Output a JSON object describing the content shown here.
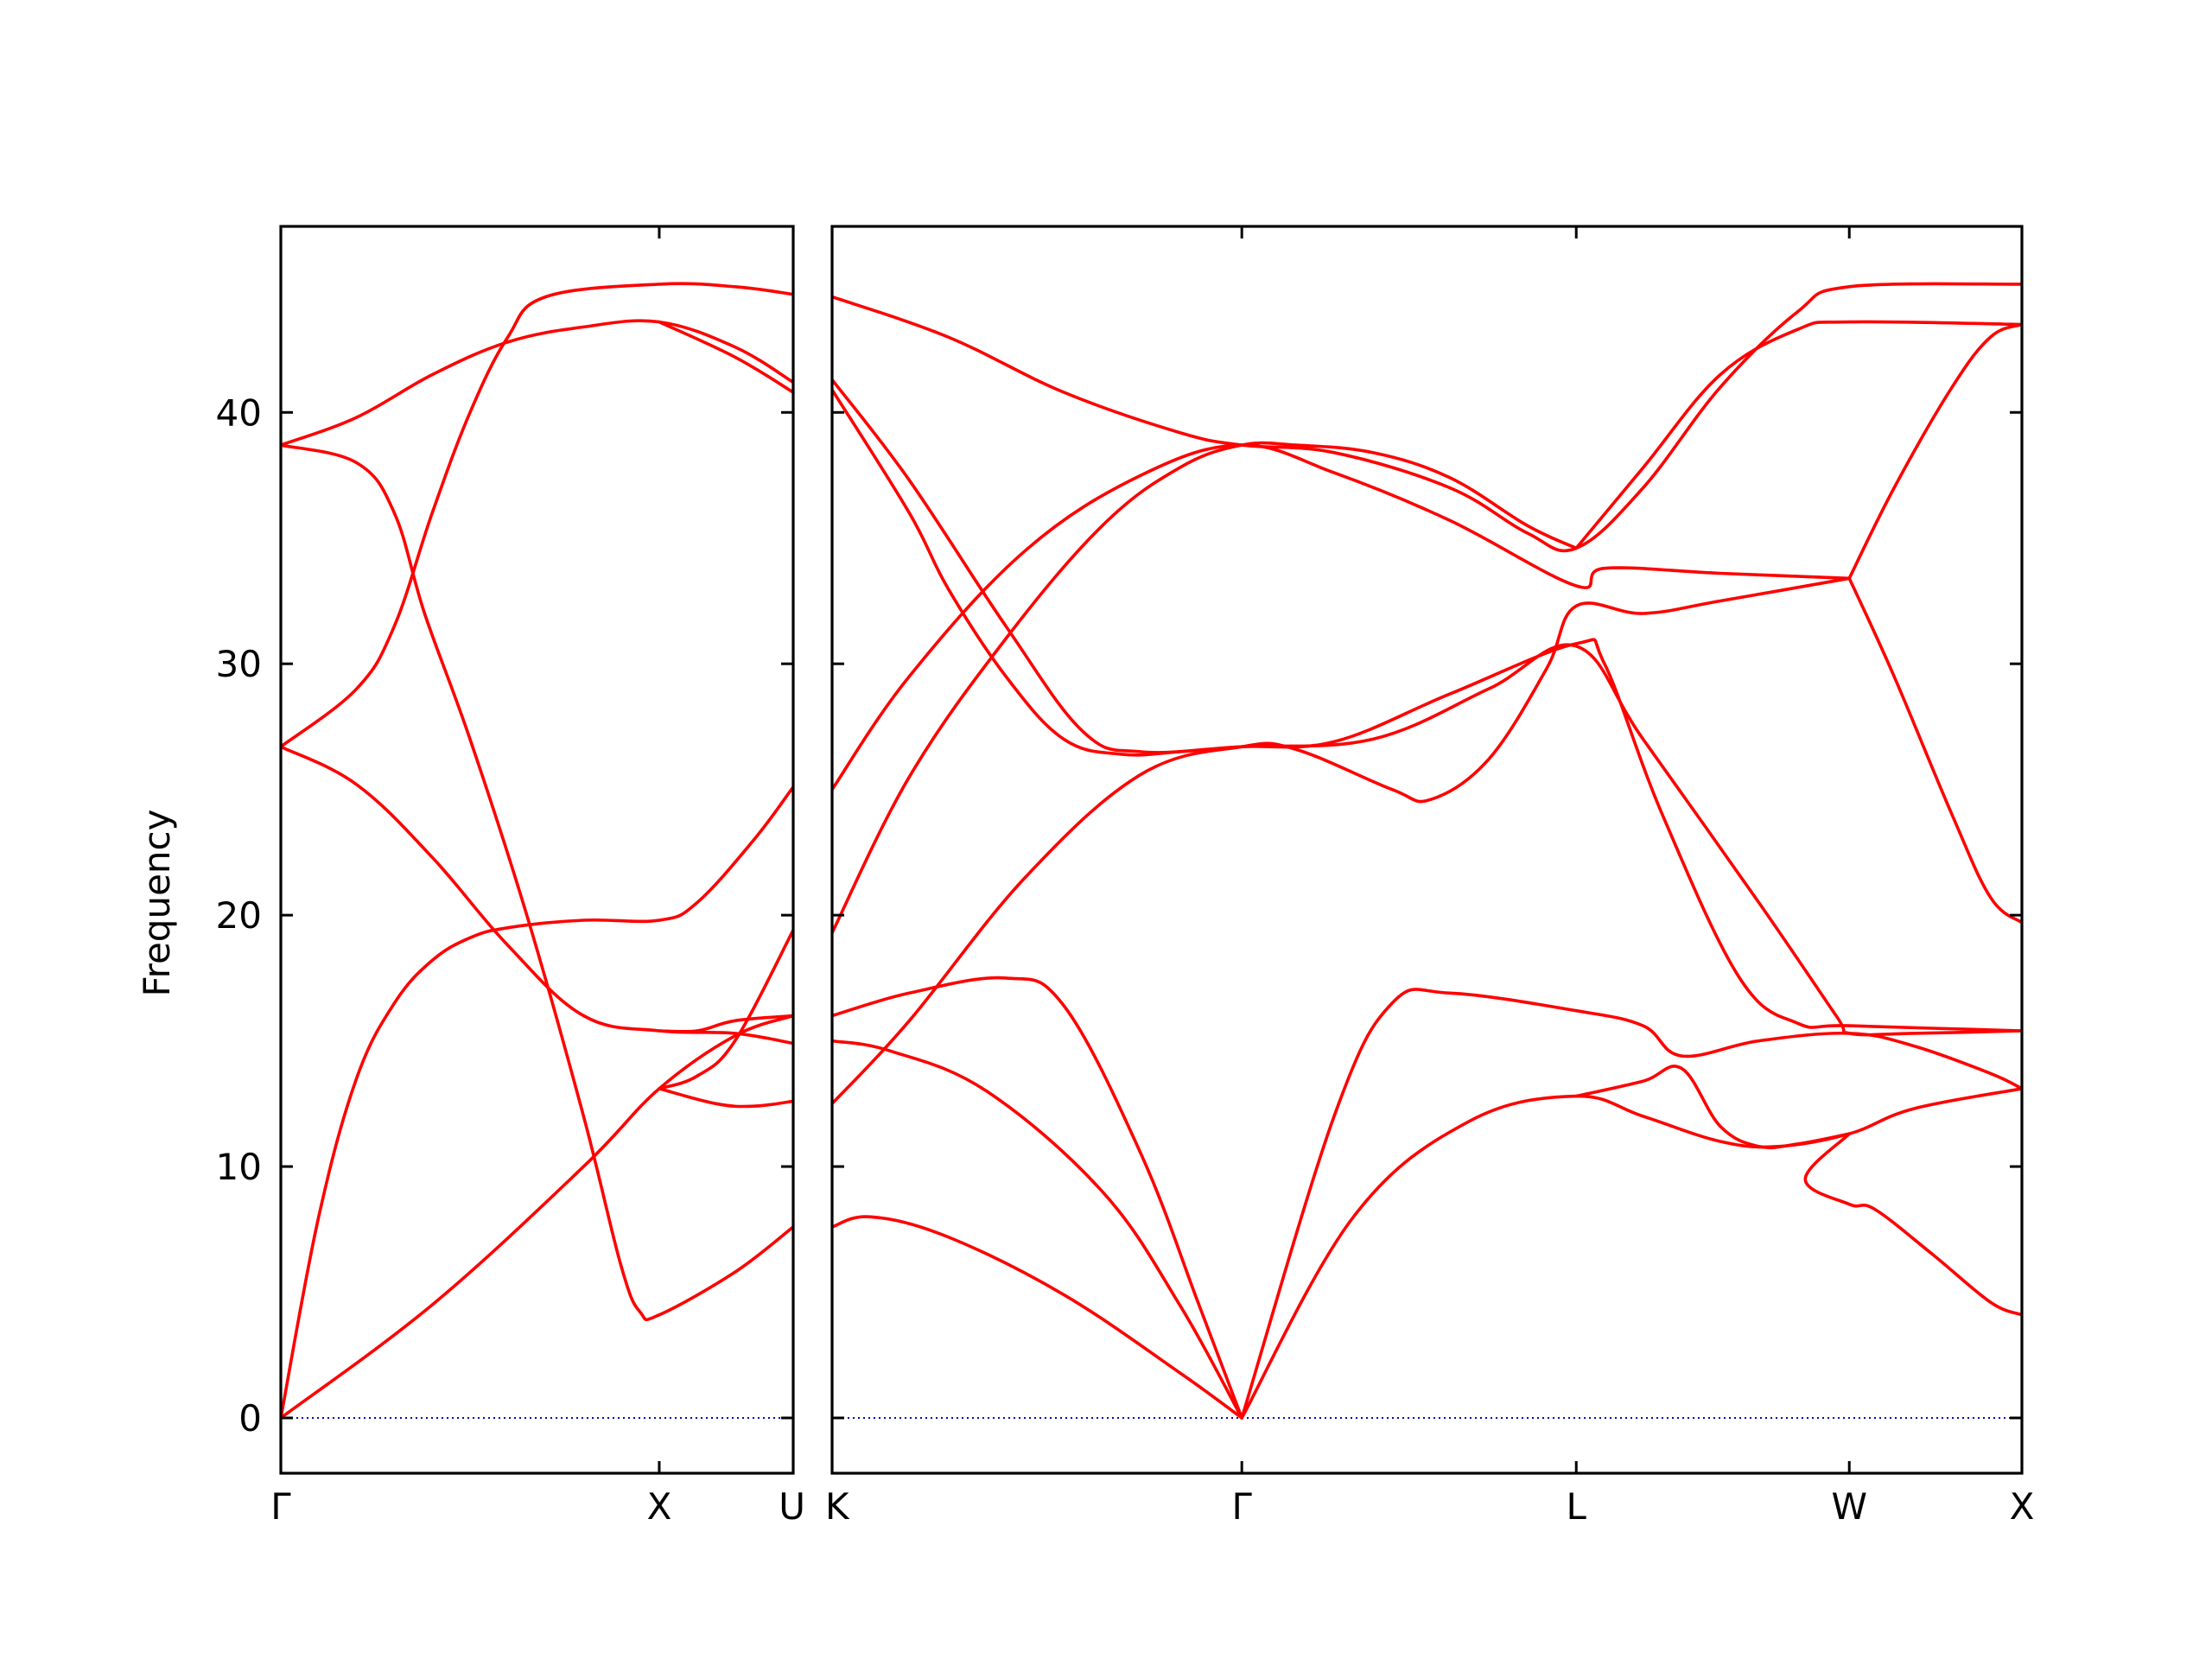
{
  "chart_data": {
    "type": "line",
    "ylabel": "Frequency",
    "ylim": [
      -2.2,
      47.4
    ],
    "yticks": [
      0,
      10,
      20,
      30,
      40
    ],
    "grid": false,
    "colors": {
      "bands": "#ff0000",
      "zero_line": "#0000cc"
    },
    "panels": [
      {
        "path": "Γ-X-U",
        "xlim": [
          0,
          1.354
        ],
        "x_ticks": [
          {
            "x": 0.0,
            "label": "Γ"
          },
          {
            "x": 1.0,
            "label": "X"
          },
          {
            "x": 1.354,
            "label": "U"
          }
        ],
        "series": [
          {
            "points": [
              [
                0,
                0
              ],
              [
                0.4,
                4.5
              ],
              [
                0.8,
                10.0
              ],
              [
                1.0,
                13.1
              ],
              [
                1.2,
                15.2
              ],
              [
                1.354,
                16.0
              ]
            ]
          },
          {
            "points": [
              [
                0,
                0
              ],
              [
                0.1,
                8.0
              ],
              [
                0.2,
                13.5
              ],
              [
                0.3,
                16.5
              ],
              [
                0.4,
                18.2
              ],
              [
                0.5,
                19.1
              ],
              [
                0.6,
                19.5
              ],
              [
                0.8,
                19.8
              ],
              [
                1.0,
                19.8
              ],
              [
                1.1,
                20.5
              ],
              [
                1.25,
                23.0
              ],
              [
                1.354,
                25.1
              ]
            ]
          },
          {
            "points": [
              [
                0,
                26.7
              ],
              [
                0.2,
                25.2
              ],
              [
                0.4,
                22.3
              ],
              [
                0.6,
                18.8
              ],
              [
                0.8,
                16.0
              ],
              [
                1.0,
                15.4
              ],
              [
                1.2,
                15.3
              ],
              [
                1.354,
                14.9
              ]
            ]
          },
          {
            "points": [
              [
                0,
                26.7
              ],
              [
                0.2,
                29.0
              ],
              [
                0.3,
                31.5
              ],
              [
                0.4,
                36.0
              ],
              [
                0.5,
                40.0
              ],
              [
                0.6,
                43.0
              ],
              [
                0.7,
                44.6
              ],
              [
                1.0,
                45.1
              ],
              [
                1.2,
                45.0
              ],
              [
                1.354,
                44.7
              ]
            ]
          },
          {
            "points": [
              [
                0,
                38.7
              ],
              [
                0.2,
                38.0
              ],
              [
                0.3,
                36.0
              ],
              [
                0.38,
                32.0
              ],
              [
                0.5,
                27.0
              ],
              [
                0.65,
                20.0
              ],
              [
                0.8,
                12.0
              ],
              [
                0.9,
                6.0
              ],
              [
                0.95,
                4.2
              ],
              [
                1.0,
                4.1
              ],
              [
                1.2,
                5.8
              ],
              [
                1.354,
                7.6
              ]
            ]
          },
          {
            "points": [
              [
                0,
                38.7
              ],
              [
                0.2,
                39.8
              ],
              [
                0.4,
                41.5
              ],
              [
                0.6,
                42.8
              ],
              [
                0.8,
                43.4
              ],
              [
                1.0,
                43.6
              ],
              [
                1.2,
                42.6
              ],
              [
                1.354,
                41.2
              ]
            ]
          },
          {
            "points": [
              [
                1.0,
                43.6
              ],
              [
                1.2,
                42.2
              ],
              [
                1.354,
                40.8
              ]
            ]
          },
          {
            "points": [
              [
                1.0,
                13.1
              ],
              [
                1.15,
                12.5
              ],
              [
                1.25,
                12.4
              ],
              [
                1.354,
                12.6
              ]
            ]
          },
          {
            "points": [
              [
                1.0,
                15.4
              ],
              [
                1.1,
                15.4
              ],
              [
                1.2,
                15.8
              ],
              [
                1.354,
                16.0
              ]
            ]
          },
          {
            "points": [
              [
                1.0,
                13.1
              ],
              [
                1.1,
                13.6
              ],
              [
                1.2,
                15.0
              ],
              [
                1.354,
                19.4
              ]
            ]
          }
        ]
      },
      {
        "path": "K-Γ-L-W-X",
        "xlim": [
          0,
          3.081
        ],
        "x_ticks": [
          {
            "x": 0.0,
            "label": "K"
          },
          {
            "x": 1.061,
            "label": "Γ"
          },
          {
            "x": 1.927,
            "label": "L"
          },
          {
            "x": 2.634,
            "label": "W"
          },
          {
            "x": 3.081,
            "label": "X"
          }
        ],
        "series": [
          {
            "points": [
              [
                0,
                7.6
              ],
              [
                0.1,
                8.0
              ],
              [
                0.3,
                7.2
              ],
              [
                0.6,
                4.9
              ],
              [
                0.9,
                1.8
              ],
              [
                1.061,
                0
              ]
            ]
          },
          {
            "points": [
              [
                0,
                15.0
              ],
              [
                0.15,
                14.6
              ],
              [
                0.4,
                13.0
              ],
              [
                0.7,
                9.0
              ],
              [
                0.9,
                4.5
              ],
              [
                1.061,
                0
              ]
            ]
          },
          {
            "points": [
              [
                0,
                16.0
              ],
              [
                0.2,
                16.9
              ],
              [
                0.45,
                17.5
              ],
              [
                0.6,
                16.4
              ],
              [
                0.8,
                10.5
              ],
              [
                0.95,
                4.5
              ],
              [
                1.061,
                0
              ]
            ]
          },
          {
            "points": [
              [
                1.061,
                0
              ],
              [
                1.35,
                8.0
              ],
              [
                1.65,
                11.8
              ],
              [
                1.927,
                12.8
              ],
              [
                2.1,
                12.0
              ],
              [
                2.3,
                11.0
              ],
              [
                2.45,
                10.8
              ],
              [
                2.634,
                11.3
              ],
              [
                2.8,
                12.3
              ],
              [
                3.081,
                13.1
              ]
            ]
          },
          {
            "points": [
              [
                1.061,
                0
              ],
              [
                1.3,
                12.0
              ],
              [
                1.45,
                16.5
              ],
              [
                1.6,
                16.9
              ],
              [
                1.927,
                16.2
              ],
              [
                2.1,
                15.6
              ],
              [
                2.2,
                14.4
              ],
              [
                2.4,
                15.0
              ],
              [
                2.634,
                15.3
              ],
              [
                2.8,
                14.8
              ],
              [
                3.0,
                13.7
              ],
              [
                3.081,
                13.1
              ]
            ]
          },
          {
            "points": [
              [
                0,
                12.5
              ],
              [
                0.2,
                15.8
              ],
              [
                0.5,
                21.5
              ],
              [
                0.8,
                25.6
              ],
              [
                1.061,
                26.7
              ],
              [
                1.2,
                26.6
              ],
              [
                1.45,
                25.0
              ],
              [
                1.55,
                24.6
              ],
              [
                1.7,
                26.2
              ],
              [
                1.85,
                29.8
              ],
              [
                1.927,
                32.3
              ],
              [
                2.1,
                32.0
              ],
              [
                2.3,
                32.5
              ],
              [
                2.634,
                33.4
              ]
            ]
          },
          {
            "points": [
              [
                0,
                19.3
              ],
              [
                0.2,
                25.5
              ],
              [
                0.45,
                31.0
              ],
              [
                0.7,
                35.5
              ],
              [
                0.9,
                37.8
              ],
              [
                1.061,
                38.7
              ],
              [
                1.2,
                38.7
              ],
              [
                1.4,
                38.4
              ],
              [
                1.6,
                37.4
              ],
              [
                1.8,
                35.5
              ],
              [
                1.927,
                34.6
              ]
            ]
          },
          {
            "points": [
              [
                0,
                25.0
              ],
              [
                0.2,
                29.5
              ],
              [
                0.5,
                34.5
              ],
              [
                0.8,
                37.5
              ],
              [
                1.061,
                38.7
              ],
              [
                1.3,
                37.6
              ],
              [
                1.6,
                35.7
              ],
              [
                1.927,
                33.1
              ],
              [
                2.0,
                33.8
              ],
              [
                2.3,
                33.6
              ],
              [
                2.634,
                33.4
              ]
            ]
          },
          {
            "points": [
              [
                0,
                40.9
              ],
              [
                0.2,
                36.0
              ],
              [
                0.3,
                33.0
              ],
              [
                0.45,
                29.5
              ],
              [
                0.6,
                27.0
              ],
              [
                0.75,
                26.4
              ],
              [
                0.9,
                26.5
              ],
              [
                1.061,
                26.7
              ],
              [
                1.3,
                26.9
              ],
              [
                1.6,
                28.8
              ],
              [
                1.927,
                30.8
              ],
              [
                2.0,
                30.0
              ],
              [
                2.15,
                24.0
              ],
              [
                2.35,
                17.5
              ],
              [
                2.5,
                15.7
              ],
              [
                2.634,
                15.6
              ],
              [
                3.081,
                15.4
              ]
            ]
          },
          {
            "points": [
              [
                0,
                41.3
              ],
              [
                0.2,
                37.3
              ],
              [
                0.45,
                31.5
              ],
              [
                0.65,
                27.3
              ],
              [
                0.8,
                26.5
              ],
              [
                1.061,
                26.7
              ],
              [
                1.4,
                27.0
              ],
              [
                1.7,
                29.0
              ],
              [
                1.927,
                30.7
              ],
              [
                2.1,
                27.0
              ],
              [
                2.4,
                20.5
              ],
              [
                2.6,
                16.0
              ],
              [
                2.634,
                15.3
              ],
              [
                2.8,
                15.3
              ],
              [
                3.081,
                15.4
              ]
            ]
          },
          {
            "points": [
              [
                0,
                44.6
              ],
              [
                0.3,
                43.0
              ],
              [
                0.6,
                40.8
              ],
              [
                0.9,
                39.2
              ],
              [
                1.061,
                38.7
              ],
              [
                1.3,
                38.4
              ],
              [
                1.6,
                37.0
              ],
              [
                1.8,
                35.2
              ],
              [
                1.927,
                34.6
              ],
              [
                2.1,
                37.0
              ],
              [
                2.3,
                41.0
              ],
              [
                2.5,
                44.0
              ],
              [
                2.634,
                45.0
              ],
              [
                3.081,
                45.1
              ]
            ]
          },
          {
            "points": [
              [
                1.927,
                34.6
              ],
              [
                2.1,
                37.8
              ],
              [
                2.3,
                41.5
              ],
              [
                2.5,
                43.3
              ],
              [
                2.634,
                43.6
              ],
              [
                3.081,
                43.5
              ]
            ]
          },
          {
            "points": [
              [
                2.634,
                33.4
              ],
              [
                2.75,
                29.5
              ],
              [
                2.9,
                24.0
              ],
              [
                3.0,
                20.7
              ],
              [
                3.081,
                19.7
              ]
            ]
          },
          {
            "points": [
              [
                2.634,
                33.4
              ],
              [
                2.75,
                37.0
              ],
              [
                2.9,
                41.0
              ],
              [
                3.0,
                43.0
              ],
              [
                3.081,
                43.5
              ]
            ]
          },
          {
            "points": [
              [
                2.634,
                11.3
              ],
              [
                2.5,
                10.9
              ],
              [
                2.4,
                10.8
              ],
              [
                2.3,
                11.6
              ],
              [
                2.2,
                13.9
              ],
              [
                2.1,
                13.4
              ],
              [
                1.927,
                12.8
              ]
            ]
          },
          {
            "points": [
              [
                2.634,
                11.3
              ],
              [
                2.52,
                9.5
              ],
              [
                2.634,
                8.5
              ],
              [
                2.7,
                8.3
              ],
              [
                2.85,
                6.5
              ],
              [
                3.0,
                4.6
              ],
              [
                3.081,
                4.1
              ]
            ]
          }
        ]
      }
    ]
  }
}
